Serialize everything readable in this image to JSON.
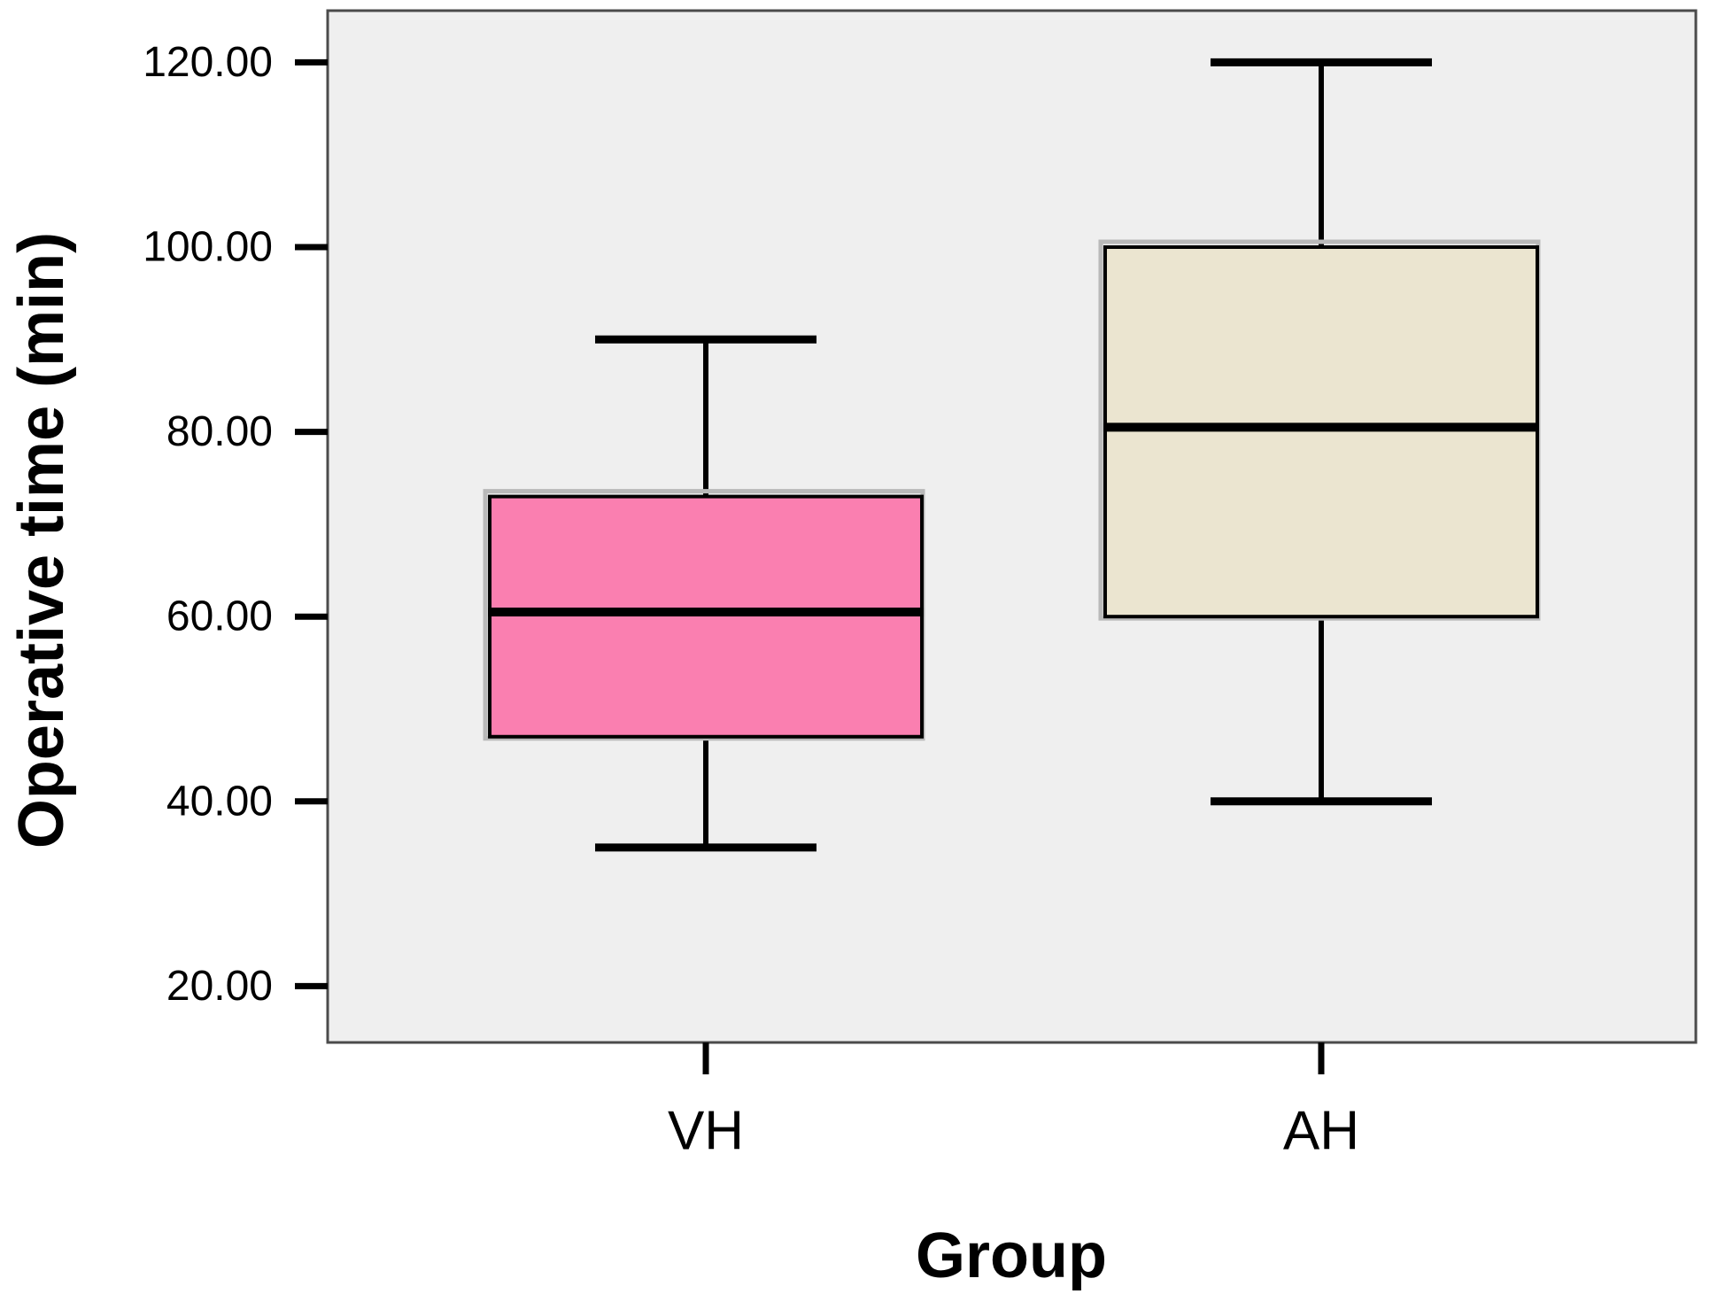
{
  "chart_data": {
    "type": "boxplot",
    "title": "",
    "xlabel": "Group",
    "ylabel": "Operative time (min)",
    "categories": [
      "VH",
      "AH"
    ],
    "y_ticks": [
      20,
      40,
      60,
      80,
      100,
      120
    ],
    "y_tick_labels": [
      "20.00",
      "40.00",
      "60.00",
      "80.00",
      "100.00",
      "120.00"
    ],
    "ylim": [
      13.9,
      125.6
    ],
    "grid": "off",
    "legend": "none",
    "series": [
      {
        "category": "VH",
        "whisker_low": 35,
        "q1": 47,
        "median": 60.5,
        "q3": 73,
        "whisker_high": 90,
        "fill_color": "#fa7fb0"
      },
      {
        "category": "AH",
        "whisker_low": 40,
        "q1": 60,
        "median": 80.5,
        "q3": 100,
        "whisker_high": 120,
        "fill_color": "#ebe5d0"
      }
    ],
    "colors": {
      "panel_background": "#efefef",
      "panel_border": "#4b4b4b",
      "line": "#000000",
      "text": "#000000"
    }
  }
}
